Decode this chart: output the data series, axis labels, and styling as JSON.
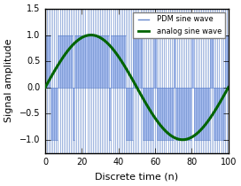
{
  "title": "",
  "xlabel": "Discrete time (n)",
  "ylabel": "Signal amplitude",
  "xlim": [
    0,
    100
  ],
  "ylim": [
    -1.25,
    1.5
  ],
  "yticks": [
    -1.0,
    -0.5,
    0.0,
    0.5,
    1.0,
    1.5
  ],
  "xticks": [
    0,
    20,
    40,
    60,
    80,
    100
  ],
  "analog_color": "#006400",
  "pdm_line_color": "#6688cc",
  "pdm_fill_color": "#aabfef",
  "legend_pdm": "PDM sine wave",
  "legend_analog": "analog sine wave",
  "n_samples": 101,
  "figsize": [
    2.72,
    2.1
  ],
  "dpi": 100
}
